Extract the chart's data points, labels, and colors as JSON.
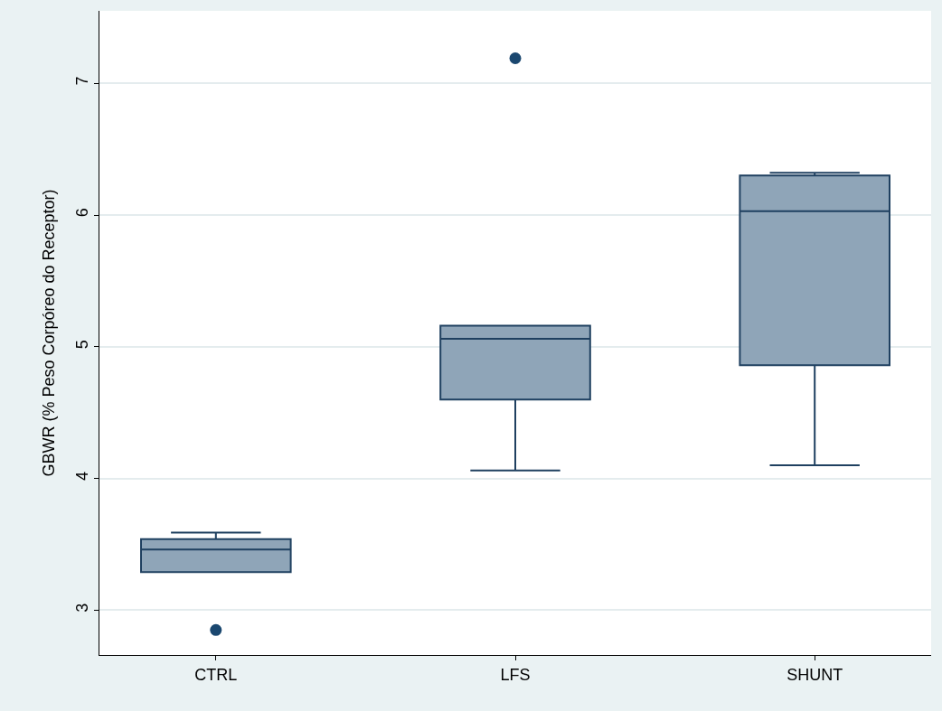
{
  "chart_data": {
    "type": "box",
    "ylabel": "GBWR (% Peso Corpóreo do Receptor)",
    "categories": [
      "CTRL",
      "LFS",
      "SHUNT"
    ],
    "boxes": [
      {
        "low": 3.29,
        "q1": 3.29,
        "median": 3.46,
        "q3": 3.54,
        "high": 3.59,
        "outliers": [
          2.85
        ]
      },
      {
        "low": 4.06,
        "q1": 4.6,
        "median": 5.06,
        "q3": 5.16,
        "high": 5.16,
        "outliers": [
          7.19
        ]
      },
      {
        "low": 4.1,
        "q1": 4.86,
        "median": 6.03,
        "q3": 6.3,
        "high": 6.32
      }
    ],
    "color": "#8fa5b8",
    "ylim": [
      2.66,
      7.55
    ],
    "yticks": [
      3,
      4,
      5,
      6,
      7
    ],
    "grid": "y"
  }
}
